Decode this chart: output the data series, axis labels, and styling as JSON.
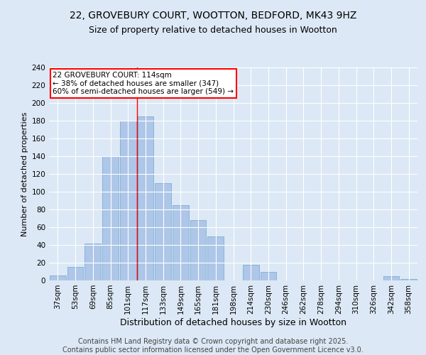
{
  "title1": "22, GROVEBURY COURT, WOOTTON, BEDFORD, MK43 9HZ",
  "title2": "Size of property relative to detached houses in Wootton",
  "xlabel": "Distribution of detached houses by size in Wootton",
  "ylabel": "Number of detached properties",
  "categories": [
    "37sqm",
    "53sqm",
    "69sqm",
    "85sqm",
    "101sqm",
    "117sqm",
    "133sqm",
    "149sqm",
    "165sqm",
    "181sqm",
    "198sqm",
    "214sqm",
    "230sqm",
    "246sqm",
    "262sqm",
    "278sqm",
    "294sqm",
    "310sqm",
    "326sqm",
    "342sqm",
    "358sqm"
  ],
  "values": [
    6,
    15,
    42,
    140,
    180,
    185,
    110,
    85,
    68,
    50,
    0,
    18,
    10,
    0,
    0,
    0,
    0,
    0,
    0,
    5,
    2
  ],
  "bar_color": "#aec6e8",
  "bar_edge_color": "#7aafd4",
  "vline_x": 4.5,
  "vline_color": "red",
  "annotation_text": "22 GROVEBURY COURT: 114sqm\n← 38% of detached houses are smaller (347)\n60% of semi-detached houses are larger (549) →",
  "annotation_box_color": "white",
  "annotation_box_edge_color": "red",
  "ylim": [
    0,
    240
  ],
  "yticks": [
    0,
    20,
    40,
    60,
    80,
    100,
    120,
    140,
    160,
    180,
    200,
    220,
    240
  ],
  "footer_text": "Contains HM Land Registry data © Crown copyright and database right 2025.\nContains public sector information licensed under the Open Government Licence v3.0.",
  "background_color": "#dce8f5",
  "plot_bg_color": "#dce8f5",
  "grid_color": "white",
  "title1_fontsize": 10,
  "title2_fontsize": 9,
  "xlabel_fontsize": 9,
  "ylabel_fontsize": 8,
  "tick_fontsize": 7.5,
  "footer_fontsize": 7
}
